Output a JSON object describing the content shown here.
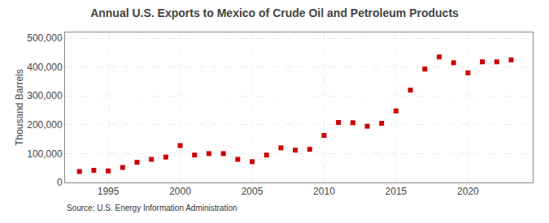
{
  "chart_data": {
    "type": "scatter",
    "title": "Annual U.S. Exports to Mexico of Crude Oil and Petroleum Products",
    "ylabel": "Thousand Barrels",
    "annotations": [
      "Source: U.S. Energy Information Administration"
    ],
    "x": [
      1993,
      1994,
      1995,
      1996,
      1997,
      1998,
      1999,
      2000,
      2001,
      2002,
      2003,
      2004,
      2005,
      2006,
      2007,
      2008,
      2009,
      2010,
      2011,
      2012,
      2013,
      2014,
      2015,
      2016,
      2017,
      2018,
      2019,
      2020,
      2021,
      2022,
      2023
    ],
    "values": [
      38000,
      42000,
      40000,
      52000,
      70000,
      80000,
      88000,
      128000,
      95000,
      100000,
      100000,
      80000,
      72000,
      95000,
      120000,
      112000,
      115000,
      163000,
      208000,
      207000,
      195000,
      205000,
      248000,
      320000,
      393000,
      435000,
      415000,
      380000,
      418000,
      418000,
      425000
    ],
    "color": "#cc0000",
    "marker": "square",
    "xlim": [
      1992,
      2024.5
    ],
    "xticks": [
      1995,
      2000,
      2005,
      2010,
      2015,
      2020
    ],
    "ylim": [
      0,
      520000
    ],
    "yticks": [
      0,
      {
        "value": 100000,
        "label": "100,000"
      },
      {
        "value": 200000,
        "label": "200,000"
      },
      {
        "value": 300000,
        "label": "300,000"
      },
      {
        "value": 400000,
        "label": "400,000"
      },
      {
        "value": 500000,
        "label": "500,000"
      }
    ],
    "grid": true
  }
}
